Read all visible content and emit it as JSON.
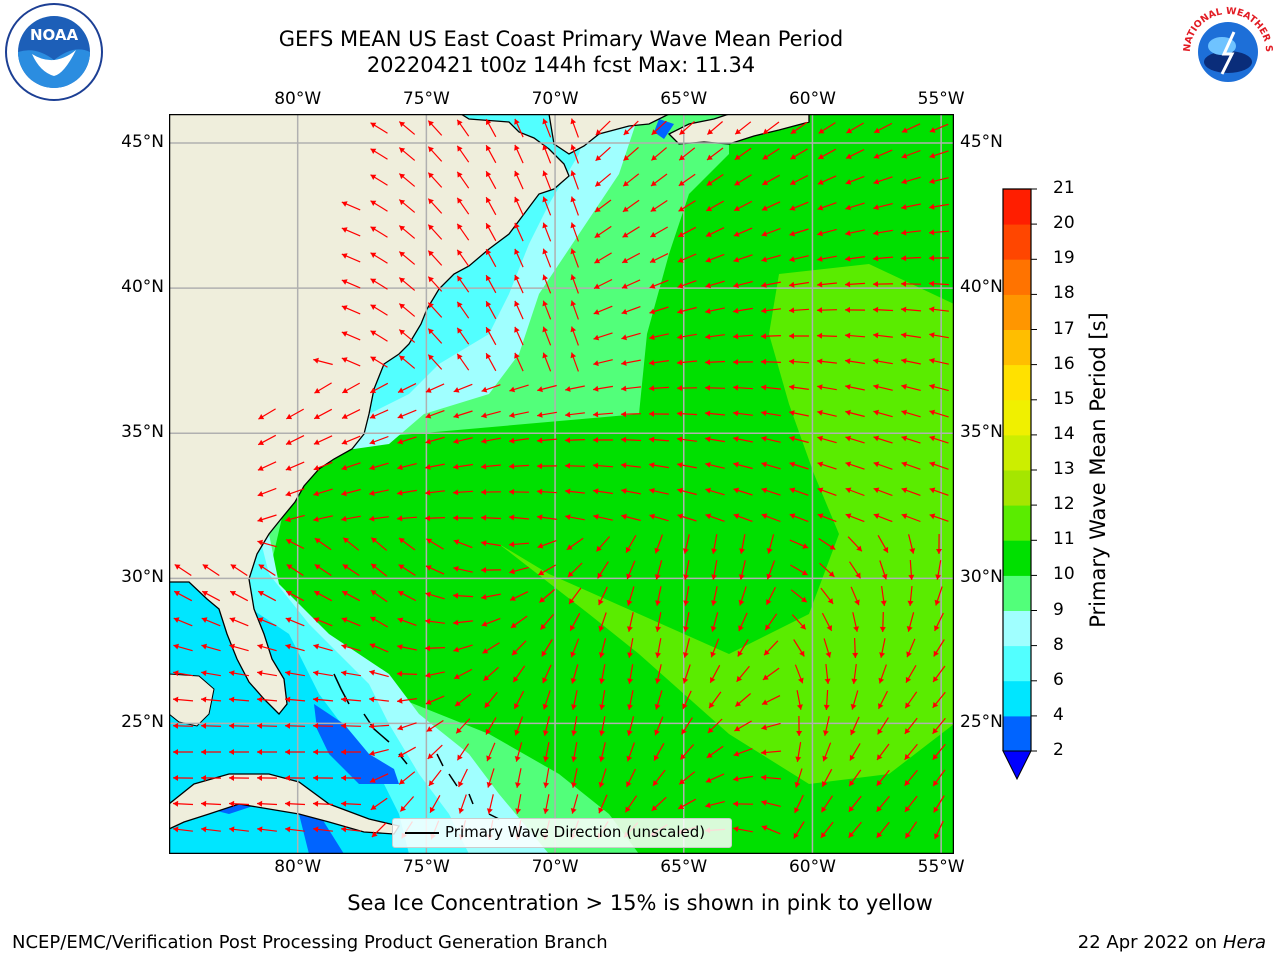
{
  "title": {
    "line1": "GEFS MEAN US East Coast Primary Wave Mean Period",
    "line2": "20220421 t00z 144h fcst   Max: 11.34"
  },
  "map": {
    "lon_labels": [
      "80°W",
      "75°W",
      "70°W",
      "65°W",
      "60°W",
      "55°W"
    ],
    "lat_labels": [
      "45°N",
      "40°N",
      "35°N",
      "30°N",
      "25°N"
    ],
    "lon_values": [
      -80,
      -75,
      -70,
      -65,
      -60,
      -55
    ],
    "lat_values": [
      45,
      40,
      35,
      30,
      25
    ],
    "extent": {
      "lon": [
        -85,
        -54.5
      ],
      "lat": [
        20.5,
        46
      ]
    },
    "ocean_color": "#00e000",
    "land_color": "#efeedc",
    "arrow_color": "#ff0000"
  },
  "colorbar": {
    "title": "Primary Wave Mean Period [s]",
    "levels": [
      "2",
      "4",
      "6",
      "8",
      "9",
      "10",
      "11",
      "12",
      "13",
      "14",
      "15",
      "16",
      "17",
      "18",
      "19",
      "20",
      "21"
    ],
    "colors": [
      "#0064ff",
      "#00e6ff",
      "#52ffff",
      "#a0ffff",
      "#52ff7a",
      "#00e000",
      "#5aec00",
      "#a5e600",
      "#ccee00",
      "#f0f000",
      "#ffe100",
      "#ffbe00",
      "#ff9600",
      "#ff7300",
      "#ff4600",
      "#ff1e00"
    ],
    "extend_color": "#0000ff"
  },
  "legend": {
    "label": "Primary Wave Direction (unscaled)"
  },
  "note": "Sea Ice Concentration > 15% is shown in pink to yellow",
  "footer": {
    "left": "NCEP/EMC/Verification Post Processing Product Generation Branch",
    "right_date": "22 Apr 2022 on ",
    "right_host": "Hera"
  },
  "logos": {
    "left": "NOAA",
    "right": "NATIONAL WEATHER SERVICE"
  }
}
